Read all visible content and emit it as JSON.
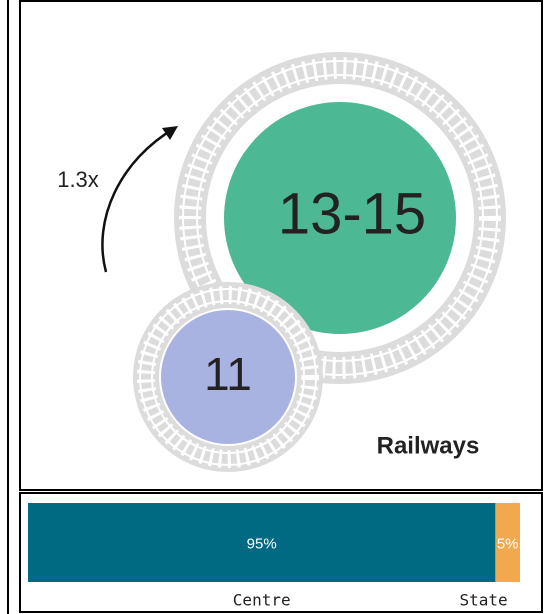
{
  "infographic": {
    "multiplier": "1.3x",
    "bubbles": [
      {
        "label": "11",
        "color": "#a9b3e2"
      },
      {
        "label": "13-15",
        "color": "#4db894"
      }
    ],
    "sector": "Railways",
    "split": {
      "segments": [
        {
          "name": "Centre",
          "value": 95,
          "label": "95%",
          "color": "#006a82"
        },
        {
          "name": "State",
          "value": 5,
          "label": "5%",
          "color": "#f2a84c"
        }
      ]
    }
  }
}
